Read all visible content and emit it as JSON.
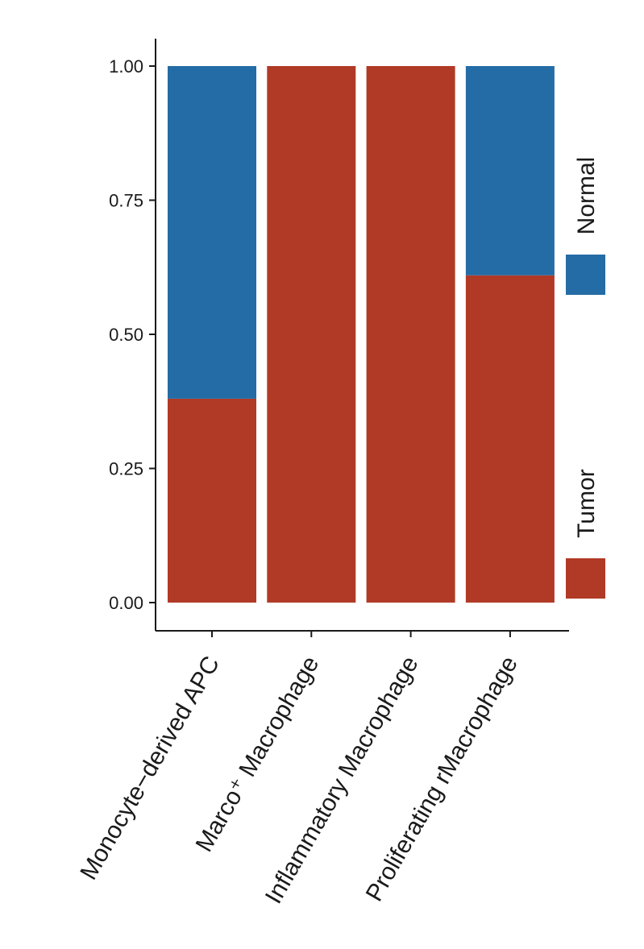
{
  "chart_data": {
    "type": "bar",
    "stacked": true,
    "categories": [
      "Monocyte−derived APC",
      "Marco⁺ Macrophage",
      "Inflammatory Macrophage",
      "Proliferating rMacrophage"
    ],
    "series": [
      {
        "name": "Tumor",
        "color": "#b03a26",
        "values": [
          0.38,
          1.0,
          1.0,
          0.61
        ]
      },
      {
        "name": "Normal",
        "color": "#246ca6",
        "values": [
          0.62,
          0.0,
          0.0,
          0.39
        ]
      }
    ],
    "ylim": [
      0,
      1
    ],
    "yticks": [
      "0.00",
      "0.25",
      "0.50",
      "0.75",
      "1.00"
    ],
    "grid": false,
    "legend": {
      "position": "right",
      "order": [
        "Normal",
        "Tumor"
      ]
    }
  }
}
